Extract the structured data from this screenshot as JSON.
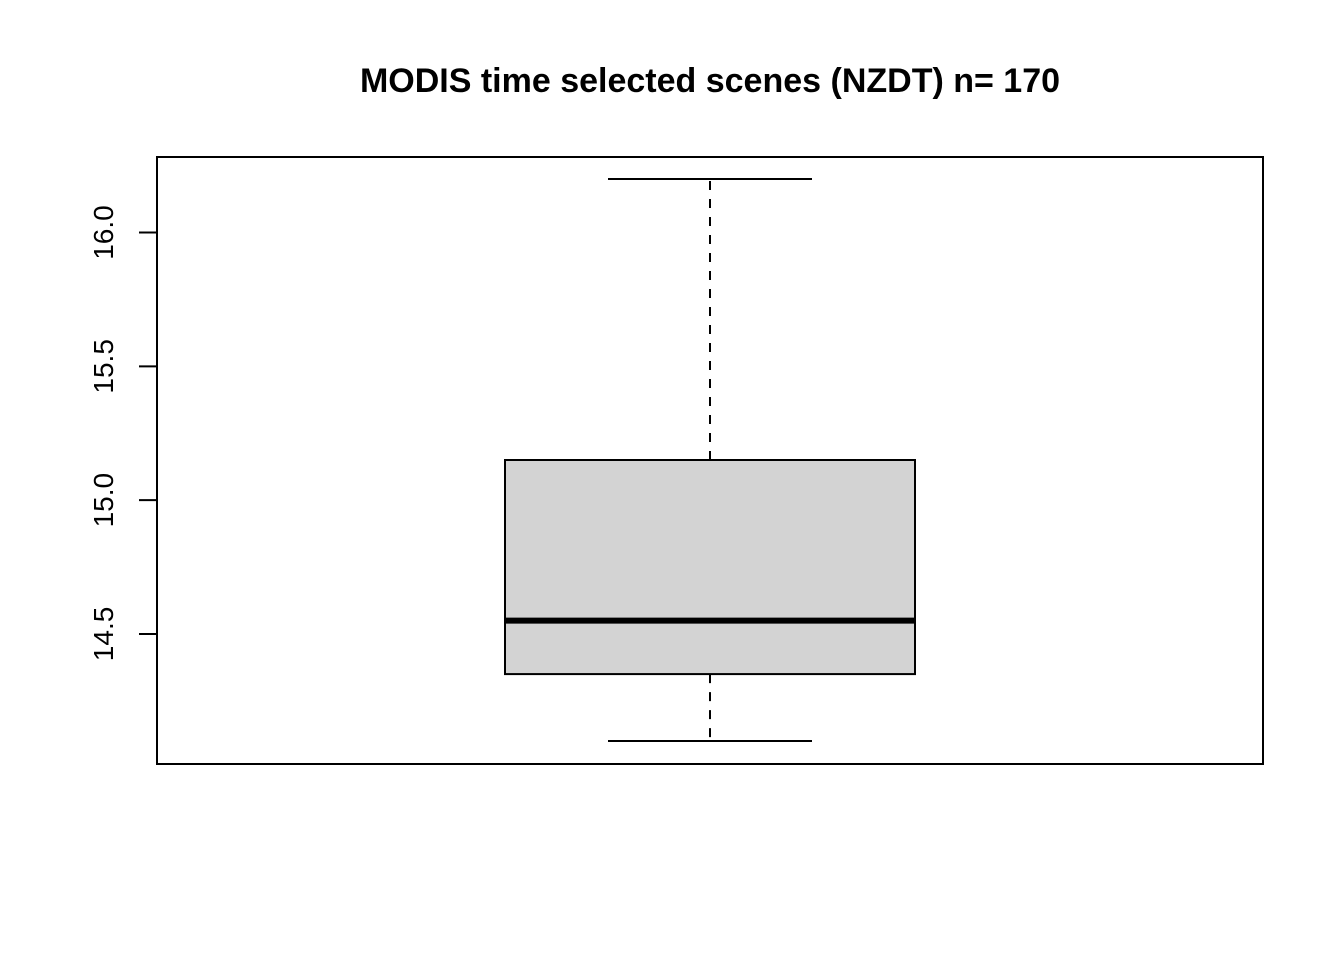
{
  "chart_data": {
    "type": "box",
    "title": "MODIS time selected scenes (NZDT) n= 170",
    "xlabel": "",
    "ylabel": "",
    "ylim": [
      14.1,
      16.2
    ],
    "y_ticks": [
      14.5,
      15.0,
      15.5,
      16.0
    ],
    "y_tick_labels": [
      "14.5",
      "15.0",
      "15.5",
      "16.0"
    ],
    "box": {
      "whisker_low": 14.1,
      "q1": 14.35,
      "median": 14.55,
      "q3": 15.15,
      "whisker_high": 16.2
    },
    "box_fill": "#d3d3d3",
    "grid": false
  }
}
